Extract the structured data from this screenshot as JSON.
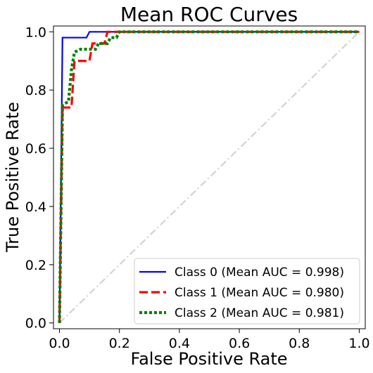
{
  "chart_data": {
    "type": "line",
    "title": "Mean ROC Curves",
    "xlabel": "False Positive Rate",
    "ylabel": "True Positive Rate",
    "xlim": [
      -0.02,
      1.02
    ],
    "ylim": [
      -0.02,
      1.02
    ],
    "xticks": [
      0.0,
      0.2,
      0.4,
      0.6,
      0.8,
      1.0
    ],
    "yticks": [
      0.0,
      0.2,
      0.4,
      0.6,
      0.8,
      1.0
    ],
    "xtick_labels": [
      "0.0",
      "0.2",
      "0.4",
      "0.6",
      "0.8",
      "1.0"
    ],
    "ytick_labels": [
      "0.0",
      "0.2",
      "0.4",
      "0.6",
      "0.8",
      "1.0"
    ],
    "grid": false,
    "legend_position": "bottom-right",
    "series": [
      {
        "name": "Class 0 (Mean AUC = 0.998)",
        "color": "#0000ff",
        "style": "solid",
        "points": [
          [
            0.0,
            0.0
          ],
          [
            0.01,
            0.98
          ],
          [
            0.09,
            0.98
          ],
          [
            0.1,
            1.0
          ],
          [
            1.0,
            1.0
          ]
        ]
      },
      {
        "name": "Class 1 (Mean AUC = 0.980)",
        "color": "#ff0000",
        "style": "dashed",
        "points": [
          [
            0.0,
            0.0
          ],
          [
            0.01,
            0.74
          ],
          [
            0.04,
            0.74
          ],
          [
            0.05,
            0.9
          ],
          [
            0.1,
            0.9
          ],
          [
            0.11,
            0.96
          ],
          [
            0.15,
            0.96
          ],
          [
            0.16,
            1.0
          ],
          [
            1.0,
            1.0
          ]
        ]
      },
      {
        "name": "Class 2 (Mean AUC = 0.981)",
        "color": "#008000",
        "style": "dotted",
        "points": [
          [
            0.0,
            0.0
          ],
          [
            0.01,
            0.75
          ],
          [
            0.03,
            0.76
          ],
          [
            0.04,
            0.87
          ],
          [
            0.05,
            0.93
          ],
          [
            0.07,
            0.94
          ],
          [
            0.12,
            0.94
          ],
          [
            0.13,
            0.96
          ],
          [
            0.16,
            0.96
          ],
          [
            0.17,
            0.98
          ],
          [
            0.19,
            0.98
          ],
          [
            0.2,
            1.0
          ],
          [
            1.0,
            1.0
          ]
        ]
      }
    ],
    "reference_line": {
      "color": "#d3d3d3",
      "style": "dashdot",
      "points": [
        [
          0,
          0
        ],
        [
          1,
          1
        ]
      ]
    }
  }
}
